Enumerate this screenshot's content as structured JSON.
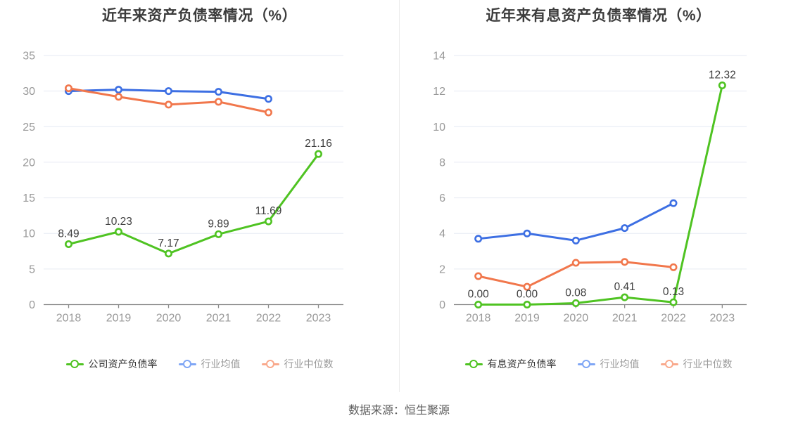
{
  "footer": {
    "source_label": "数据来源：恒生聚源"
  },
  "palette": {
    "grid": "#e6eaf3",
    "axis": "#8a8a8a",
    "tick_label": "#999999",
    "data_label": "#3f3f3f",
    "title": "#3c3c3c",
    "source": "#5c5c5c"
  },
  "chart_data": [
    {
      "type": "line",
      "title": "近年来资产负债率情况（%）",
      "categories": [
        "2018",
        "2019",
        "2020",
        "2021",
        "2022",
        "2023"
      ],
      "ylim": [
        0,
        35
      ],
      "ytick_step": 5,
      "yticks": [
        0,
        5,
        10,
        15,
        20,
        25,
        30,
        35
      ],
      "grid": true,
      "legend_position": "bottom",
      "series": [
        {
          "name": "公司资产负债率",
          "color": "#4fc322",
          "legend_color": "#4fc322",
          "values": [
            8.49,
            10.23,
            7.17,
            9.89,
            11.69,
            21.16
          ],
          "data_labels": [
            "8.49",
            "10.23",
            "7.17",
            "9.89",
            "11.69",
            "21.16"
          ]
        },
        {
          "name": "行业均值",
          "color": "#3d6fe3",
          "legend_color": "#7fa6f5",
          "values": [
            30.0,
            30.2,
            30.0,
            29.9,
            28.9
          ]
        },
        {
          "name": "行业中位数",
          "color": "#f1774c",
          "legend_color": "#f9a98c",
          "values": [
            30.4,
            29.2,
            28.1,
            28.5,
            27.0
          ]
        }
      ]
    },
    {
      "type": "line",
      "title": "近年来有息资产负债率情况（%）",
      "categories": [
        "2018",
        "2019",
        "2020",
        "2021",
        "2022",
        "2023"
      ],
      "ylim": [
        0,
        14
      ],
      "ytick_step": 2,
      "yticks": [
        0,
        2,
        4,
        6,
        8,
        10,
        12,
        14
      ],
      "grid": true,
      "legend_position": "bottom",
      "series": [
        {
          "name": "有息资产负债率",
          "color": "#4fc322",
          "legend_color": "#4fc322",
          "values": [
            0.0,
            0.0,
            0.08,
            0.41,
            0.13,
            12.32
          ],
          "data_labels": [
            "0.00",
            "0.00",
            "0.08",
            "0.41",
            "0.13",
            "12.32"
          ]
        },
        {
          "name": "行业均值",
          "color": "#3d6fe3",
          "legend_color": "#7fa6f5",
          "values": [
            3.7,
            4.0,
            3.6,
            4.3,
            5.7
          ]
        },
        {
          "name": "行业中位数",
          "color": "#f1774c",
          "legend_color": "#f9a98c",
          "values": [
            1.6,
            1.0,
            2.35,
            2.4,
            2.1
          ]
        }
      ]
    }
  ]
}
